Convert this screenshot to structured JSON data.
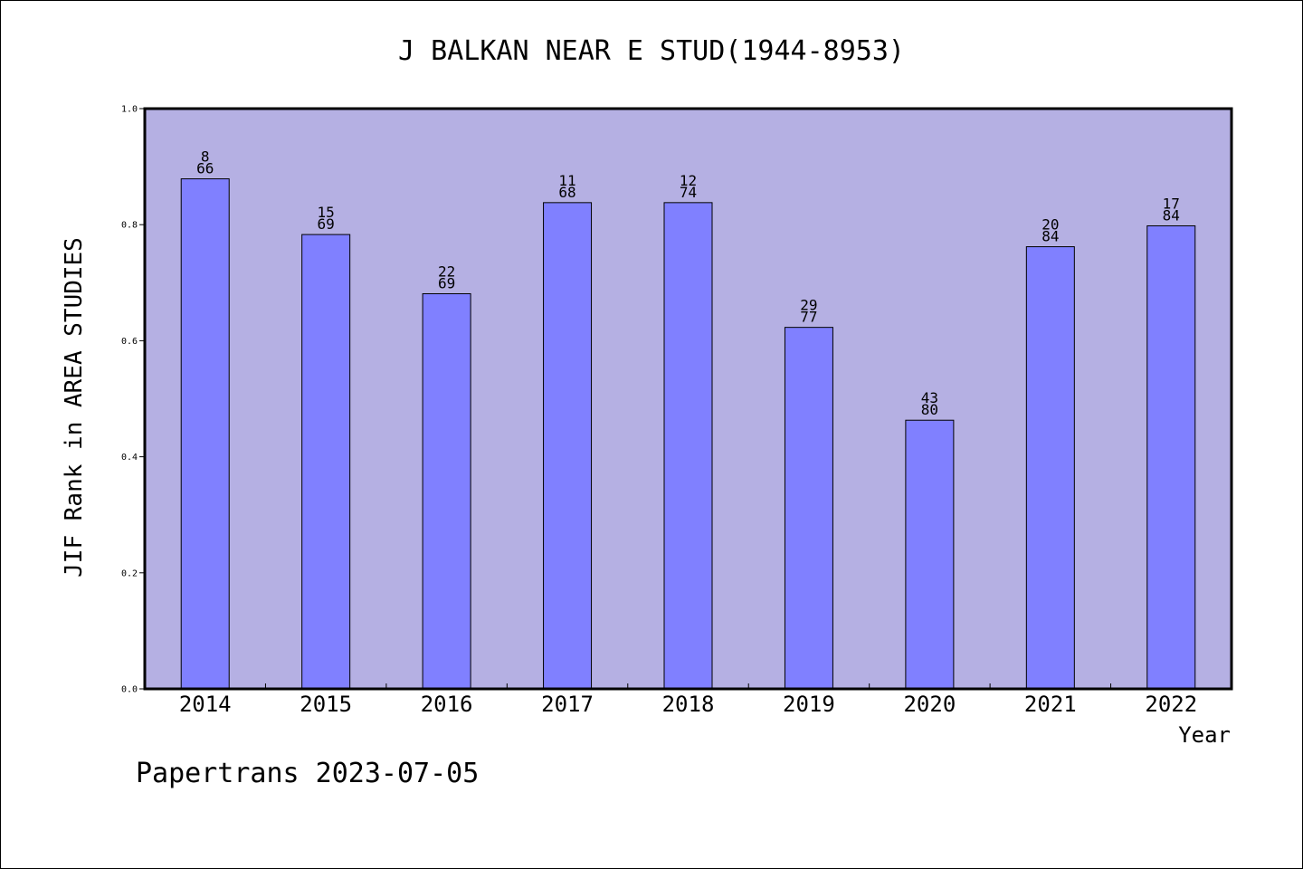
{
  "chart_data": {
    "type": "bar",
    "title": "J BALKAN NEAR E STUD(1944-8953)",
    "xlabel": "Year",
    "ylabel": "JIF Rank in AREA STUDIES",
    "ylim": [
      0,
      1.0
    ],
    "yticks": [
      "0.0",
      "0.2",
      "0.4",
      "0.6",
      "0.8",
      "1.0"
    ],
    "categories": [
      "2014",
      "2015",
      "2016",
      "2017",
      "2018",
      "2019",
      "2020",
      "2021",
      "2022"
    ],
    "values": [
      0.879,
      0.783,
      0.681,
      0.838,
      0.838,
      0.623,
      0.463,
      0.762,
      0.798
    ],
    "ranks": [
      "8",
      "15",
      "22",
      "11",
      "12",
      "29",
      "43",
      "20",
      "17"
    ],
    "totals": [
      "66",
      "69",
      "69",
      "68",
      "74",
      "77",
      "80",
      "84",
      "84"
    ],
    "grid": false,
    "colors": {
      "plot_background": "#b5b0e3",
      "bar": "#8080ff",
      "bar_edge": "#000000"
    }
  },
  "footer": "Papertrans 2023-07-05"
}
